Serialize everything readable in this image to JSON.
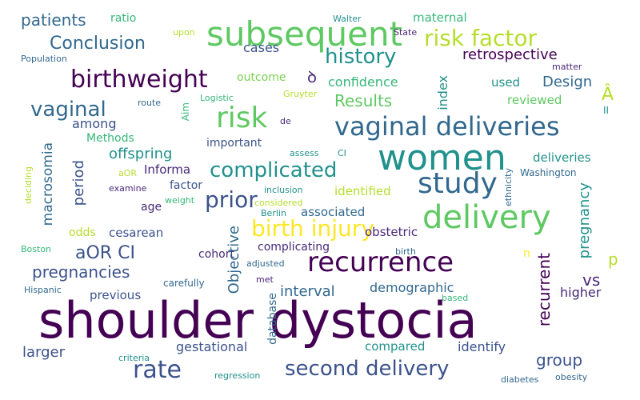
{
  "words": [
    {
      "text": "shoulder dystocia",
      "color": "#440154"
    },
    {
      "text": "subsequent",
      "color": "#5ec962"
    },
    {
      "text": "women",
      "color": "#21918c"
    },
    {
      "text": "delivery",
      "color": "#5ec962"
    },
    {
      "text": "recurrence",
      "color": "#440154"
    },
    {
      "text": "vaginal deliveries",
      "color": "#31688e"
    },
    {
      "text": "study",
      "color": "#31688e"
    },
    {
      "text": "risk factor",
      "color": "#b5de2b"
    },
    {
      "text": "birthweight",
      "color": "#440154"
    },
    {
      "text": "risk",
      "color": "#5ec962"
    },
    {
      "text": "rate",
      "color": "#3b528b"
    },
    {
      "text": "birth injury",
      "color": "#fde725"
    },
    {
      "text": "second delivery",
      "color": "#3b528b"
    },
    {
      "text": "history",
      "color": "#21918c"
    },
    {
      "text": "complicated",
      "color": "#21918c"
    },
    {
      "text": "prior",
      "color": "#3b528b"
    },
    {
      "text": "vaginal",
      "color": "#31688e"
    },
    {
      "text": "Conclusion",
      "color": "#31688e"
    },
    {
      "text": "aOR CI",
      "color": "#3b528b"
    },
    {
      "text": "pregnancies",
      "color": "#3b528b"
    },
    {
      "text": "patients",
      "color": "#31688e"
    },
    {
      "text": "Results",
      "color": "#5ec962"
    },
    {
      "text": "retrospective",
      "color": "#440154"
    },
    {
      "text": "Design",
      "color": "#31688e"
    },
    {
      "text": "offspring",
      "color": "#21918c"
    },
    {
      "text": "interval",
      "color": "#31688e"
    },
    {
      "text": "group",
      "color": "#3b528b"
    },
    {
      "text": "vs",
      "color": "#482878"
    },
    {
      "text": "higher",
      "color": "#482878"
    },
    {
      "text": "identify",
      "color": "#3b528b"
    },
    {
      "text": "gestational",
      "color": "#3b528b"
    },
    {
      "text": "larger",
      "color": "#3b528b"
    },
    {
      "text": "demographic",
      "color": "#31688e"
    },
    {
      "text": "compared",
      "color": "#21918c"
    },
    {
      "text": "cases",
      "color": "#3b528b"
    },
    {
      "text": "maternal",
      "color": "#35b779"
    },
    {
      "text": "confidence",
      "color": "#35b779"
    },
    {
      "text": "used",
      "color": "#21918c"
    },
    {
      "text": "reviewed",
      "color": "#5ec962"
    },
    {
      "text": "outcome",
      "color": "#7ad151"
    },
    {
      "text": "among",
      "color": "#3b528b"
    },
    {
      "text": "Methods",
      "color": "#35b779"
    },
    {
      "text": "important",
      "color": "#3b528b"
    },
    {
      "text": "Informa",
      "color": "#482878"
    },
    {
      "text": "factor",
      "color": "#3b528b"
    },
    {
      "text": "identified",
      "color": "#b5de2b"
    },
    {
      "text": "associated",
      "color": "#31688e"
    },
    {
      "text": "deliveries",
      "color": "#21918c"
    },
    {
      "text": "complicating",
      "color": "#482878"
    },
    {
      "text": "obstetric",
      "color": "#482878"
    },
    {
      "text": "cesarean",
      "color": "#3b528b"
    },
    {
      "text": "odds",
      "color": "#b5de2b"
    },
    {
      "text": "cohort",
      "color": "#482878"
    },
    {
      "text": "previous",
      "color": "#3b528b"
    },
    {
      "text": "age",
      "color": "#482878"
    },
    {
      "text": "ratio",
      "color": "#35b779"
    },
    {
      "text": "carefully",
      "color": "#31688e"
    },
    {
      "text": "Washington",
      "color": "#31688e"
    },
    {
      "text": "Population",
      "color": "#31688e"
    },
    {
      "text": "upon",
      "color": "#b5de2b"
    },
    {
      "text": "Walter",
      "color": "#21918c"
    },
    {
      "text": "State",
      "color": "#482878"
    },
    {
      "text": "matter",
      "color": "#482878"
    },
    {
      "text": "route",
      "color": "#31688e"
    },
    {
      "text": "Logistic",
      "color": "#35b779"
    },
    {
      "text": "Gruyter",
      "color": "#b5de2b"
    },
    {
      "text": "de",
      "color": "#482878"
    },
    {
      "text": "assess",
      "color": "#21918c"
    },
    {
      "text": "CI",
      "color": "#21918c"
    },
    {
      "text": "inclusion",
      "color": "#21918c"
    },
    {
      "text": "considered",
      "color": "#b5de2b"
    },
    {
      "text": "aOR",
      "color": "#b5de2b"
    },
    {
      "text": "examine",
      "color": "#482878"
    },
    {
      "text": "weight",
      "color": "#35b779"
    },
    {
      "text": "Berlin",
      "color": "#21918c"
    },
    {
      "text": "Boston",
      "color": "#35b779"
    },
    {
      "text": "Hispanic",
      "color": "#31688e"
    },
    {
      "text": "adjusted",
      "color": "#31688e"
    },
    {
      "text": "met",
      "color": "#482878"
    },
    {
      "text": "birth",
      "color": "#31688e"
    },
    {
      "text": "based",
      "color": "#35b779"
    },
    {
      "text": "criteria",
      "color": "#21918c"
    },
    {
      "text": "regression",
      "color": "#21918c"
    },
    {
      "text": "diabetes",
      "color": "#31688e"
    },
    {
      "text": "obesity",
      "color": "#31688e"
    },
    {
      "text": "Â",
      "color": "#b5de2b"
    },
    {
      "text": "II",
      "color": "#21918c"
    },
    {
      "text": "n",
      "color": "#fde725"
    },
    {
      "text": "p",
      "color": "#b5de2b"
    },
    {
      "text": "ꝺ",
      "color": "#482878"
    },
    {
      "text": "index",
      "color": "#21918c"
    },
    {
      "text": "macrosomia",
      "color": "#31688e"
    },
    {
      "text": "period",
      "color": "#3b528b"
    },
    {
      "text": "Aim",
      "color": "#35b779"
    },
    {
      "text": "Objective",
      "color": "#31688e"
    },
    {
      "text": "database",
      "color": "#31688e"
    },
    {
      "text": "recurrent",
      "color": "#440154"
    },
    {
      "text": "pregnancy",
      "color": "#21918c"
    },
    {
      "text": "deciding",
      "color": "#b5de2b"
    },
    {
      "text": "ethnicity",
      "color": "#31688e"
    }
  ]
}
